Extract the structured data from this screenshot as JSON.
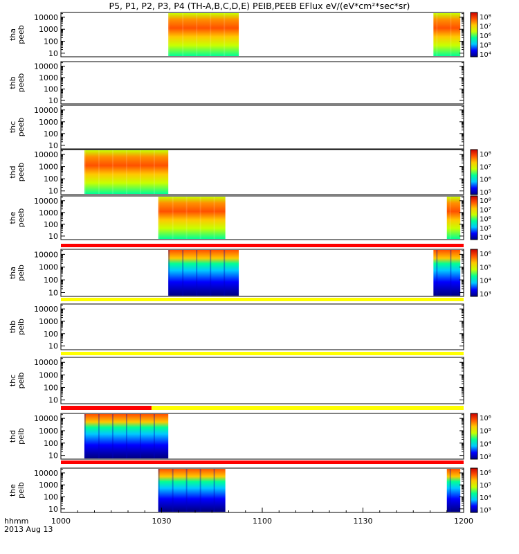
{
  "title": "P5, P1, P2, P3, P4 (TH-A,B,C,D,E) PEIB,PEEB EFlux eV/(eV*cm²*sec*sr)",
  "x_caption": "hhmm",
  "date_caption": "2013 Aug 13",
  "chart_data": {
    "type": "heatmap",
    "title": "P5, P1, P2, P3, P4 (TH-A,B,C,D,E) PEIB,PEEB EFlux eV/(eV*cm²*sec*sr)",
    "x_range": [
      "10:00",
      "12:00"
    ],
    "x_ticks": [
      "1000",
      "1030",
      "1100",
      "1130",
      "1200"
    ],
    "y_scale": "log",
    "y_ticks": [
      "10",
      "100",
      "1000",
      "10000"
    ],
    "colormap": [
      "#000080",
      "#0000ff",
      "#00c8ff",
      "#00ff96",
      "#c8ff00",
      "#ffc800",
      "#ff5000",
      "#c80000"
    ],
    "panels": [
      {
        "ylabel": [
          "tha",
          "peeb"
        ],
        "has_colorbar": true,
        "cbar_ticks": [
          "10⁴",
          "10⁵",
          "10⁶",
          "10⁷",
          "10⁸"
        ],
        "data_intervals": [
          [
            "10:32",
            "10:53"
          ],
          [
            "11:51",
            "11:59"
          ]
        ]
      },
      {
        "ylabel": [
          "thb",
          "peeb"
        ],
        "has_colorbar": false,
        "data_intervals": []
      },
      {
        "ylabel": [
          "thc",
          "peeb"
        ],
        "has_colorbar": false,
        "data_intervals": []
      },
      {
        "ylabel": [
          "thd",
          "peeb"
        ],
        "has_colorbar": true,
        "cbar_ticks": [
          "10⁵",
          "10⁶",
          "10⁷",
          "10⁸"
        ],
        "data_intervals": [
          [
            "10:07",
            "10:32"
          ]
        ]
      },
      {
        "ylabel": [
          "the",
          "peeb"
        ],
        "has_colorbar": true,
        "cbar_ticks": [
          "10⁴",
          "10⁵",
          "10⁶",
          "10⁷",
          "10⁸"
        ],
        "data_intervals": [
          [
            "10:29",
            "10:49"
          ],
          [
            "11:55",
            "11:59"
          ]
        ]
      },
      {
        "ylabel": [
          "tha",
          "peib"
        ],
        "has_colorbar": true,
        "cbar_ticks": [
          "10³",
          "10⁴",
          "10⁵",
          "10⁶"
        ],
        "data_intervals": [
          [
            "10:32",
            "10:53"
          ],
          [
            "11:51",
            "11:59"
          ]
        ]
      },
      {
        "ylabel": [
          "thb",
          "peib"
        ],
        "has_colorbar": false,
        "data_intervals": []
      },
      {
        "ylabel": [
          "thc",
          "peib"
        ],
        "has_colorbar": false,
        "data_intervals": []
      },
      {
        "ylabel": [
          "thd",
          "peib"
        ],
        "has_colorbar": true,
        "cbar_ticks": [
          "10³",
          "10⁴",
          "10⁵",
          "10⁶"
        ],
        "data_intervals": [
          [
            "10:07",
            "10:32"
          ]
        ]
      },
      {
        "ylabel": [
          "the",
          "peib"
        ],
        "has_colorbar": true,
        "cbar_ticks": [
          "10³",
          "10⁴",
          "10⁵",
          "10⁶"
        ],
        "data_intervals": [
          [
            "10:29",
            "10:49"
          ],
          [
            "11:55",
            "11:59"
          ]
        ]
      }
    ],
    "status_bars": [
      {
        "segments": [
          {
            "from": "10:00",
            "to": "12:00",
            "color": "#ff0000"
          }
        ]
      },
      {
        "segments": [
          {
            "from": "10:00",
            "to": "12:00",
            "color": "#ffff00"
          }
        ]
      },
      {
        "segments": [
          {
            "from": "10:00",
            "to": "12:00",
            "color": "#ffff00"
          }
        ]
      },
      {
        "segments": [
          {
            "from": "10:00",
            "to": "10:27",
            "color": "#ff0000"
          },
          {
            "from": "10:27",
            "to": "12:00",
            "color": "#ffff00"
          }
        ]
      },
      {
        "segments": [
          {
            "from": "10:00",
            "to": "12:00",
            "color": "#ff0000"
          }
        ]
      }
    ]
  }
}
